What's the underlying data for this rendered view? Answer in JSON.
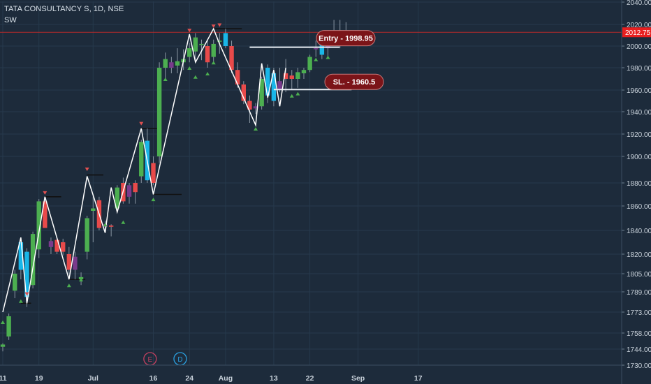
{
  "header": {
    "symbol_line": "TATA CONSULTANCY S, 1D, NSE",
    "indicator": "SW"
  },
  "colors": {
    "background": "#1d2b3b",
    "grid": "#26394c",
    "text": "#c8d1da",
    "up": "#4caf50",
    "down": "#e84a4a",
    "cyan": "#19b6e8",
    "purple": "#7a3a8c",
    "zigzag": "#ffffff",
    "price_line": "#b52a2a",
    "price_tag": "#e81f1f",
    "label_bg": "#7b1418"
  },
  "chart_data": {
    "type": "candlestick",
    "y_ticks": [
      2040.0,
      2020.0,
      2000.0,
      1980.0,
      1960.0,
      1940.0,
      1920.0,
      1900.0,
      1880.0,
      1860.0,
      1840.0,
      1820.0,
      1805.0,
      1789.0,
      1773.0,
      1758.0,
      1744.0,
      1730.0
    ],
    "y_tick_labels": [
      "2040.00",
      "2020.00",
      "2000.00",
      "1980.00",
      "1960.00",
      "1940.00",
      "1920.00",
      "1900.00",
      "1880.00",
      "1860.00",
      "1840.00",
      "1820.00",
      "1805.00",
      "1789.00",
      "1773.00",
      "1758.00",
      "1744.00",
      "1730.00"
    ],
    "ylim": [
      1730,
      2043
    ],
    "x_labels": [
      {
        "label": "11",
        "index": 0
      },
      {
        "label": "19",
        "index": 6
      },
      {
        "label": "Jul",
        "index": 15
      },
      {
        "label": "16",
        "index": 25
      },
      {
        "label": "24",
        "index": 31
      },
      {
        "label": "Aug",
        "index": 37
      },
      {
        "label": "13",
        "index": 45
      },
      {
        "label": "22",
        "index": 51
      },
      {
        "label": "Sep",
        "index": 59
      },
      {
        "label": "17",
        "index": 69
      }
    ],
    "candles": [
      {
        "o": 1746,
        "h": 1749,
        "l": 1742,
        "c": 1748,
        "col": "up"
      },
      {
        "o": 1755,
        "h": 1772,
        "l": 1752,
        "c": 1770,
        "col": "up"
      },
      {
        "o": 1790,
        "h": 1808,
        "l": 1784,
        "c": 1805,
        "col": "up"
      },
      {
        "o": 1808,
        "h": 1833,
        "l": 1800,
        "c": 1830,
        "col": "cyan"
      },
      {
        "o": 1785,
        "h": 1825,
        "l": 1777,
        "c": 1822,
        "col": "cyan"
      },
      {
        "o": 1795,
        "h": 1839,
        "l": 1792,
        "c": 1837,
        "col": "up"
      },
      {
        "o": 1824,
        "h": 1866,
        "l": 1817,
        "c": 1864,
        "col": "up"
      },
      {
        "o": 1864,
        "h": 1867,
        "l": 1842,
        "c": 1842,
        "col": "down"
      },
      {
        "o": 1826,
        "h": 1834,
        "l": 1820,
        "c": 1831,
        "col": "purple"
      },
      {
        "o": 1832,
        "h": 1834,
        "l": 1820,
        "c": 1822,
        "col": "down"
      },
      {
        "o": 1830,
        "h": 1833,
        "l": 1819,
        "c": 1822,
        "col": "down"
      },
      {
        "o": 1820,
        "h": 1826,
        "l": 1805,
        "c": 1808,
        "col": "down"
      },
      {
        "o": 1808,
        "h": 1822,
        "l": 1800,
        "c": 1818,
        "col": "purple"
      },
      {
        "o": 1800,
        "h": 1806,
        "l": 1795,
        "c": 1802,
        "col": "up"
      },
      {
        "o": 1822,
        "h": 1852,
        "l": 1816,
        "c": 1850,
        "col": "up"
      },
      {
        "o": 1856,
        "h": 1870,
        "l": 1830,
        "c": 1858,
        "col": "up"
      },
      {
        "o": 1865,
        "h": 1868,
        "l": 1840,
        "c": 1842,
        "col": "down"
      },
      {
        "o": 1845,
        "h": 1848,
        "l": 1838,
        "c": 1843,
        "col": "purple"
      },
      {
        "o": 1843,
        "h": 1845,
        "l": 1835,
        "c": 1844,
        "col": "down"
      },
      {
        "o": 1858,
        "h": 1878,
        "l": 1855,
        "c": 1876,
        "col": "up"
      },
      {
        "o": 1880,
        "h": 1884,
        "l": 1862,
        "c": 1864,
        "col": "down"
      },
      {
        "o": 1878,
        "h": 1880,
        "l": 1862,
        "c": 1868,
        "col": "purple"
      },
      {
        "o": 1872,
        "h": 1882,
        "l": 1862,
        "c": 1880,
        "col": "down"
      },
      {
        "o": 1885,
        "h": 1915,
        "l": 1880,
        "c": 1913,
        "col": "up"
      },
      {
        "o": 1914,
        "h": 1925,
        "l": 1880,
        "c": 1882,
        "col": "cyan"
      },
      {
        "o": 1895,
        "h": 1900,
        "l": 1878,
        "c": 1880,
        "col": "down"
      },
      {
        "o": 1900,
        "h": 1985,
        "l": 1895,
        "c": 1980,
        "col": "up"
      },
      {
        "o": 1980,
        "h": 1994,
        "l": 1970,
        "c": 1988,
        "col": "up"
      },
      {
        "o": 1985,
        "h": 1990,
        "l": 1975,
        "c": 1980,
        "col": "purple"
      },
      {
        "o": 1982,
        "h": 1998,
        "l": 1975,
        "c": 1986,
        "col": "up"
      },
      {
        "o": 1985,
        "h": 1997,
        "l": 1978,
        "c": 1988,
        "col": "up"
      },
      {
        "o": 1990,
        "h": 2003,
        "l": 1985,
        "c": 1998,
        "col": "up"
      },
      {
        "o": 1995,
        "h": 2012,
        "l": 1985,
        "c": 2008,
        "col": "up"
      },
      {
        "o": 2002,
        "h": 2006,
        "l": 1987,
        "c": 2002,
        "col": "up"
      },
      {
        "o": 2000,
        "h": 2005,
        "l": 1980,
        "c": 1985,
        "col": "down"
      },
      {
        "o": 1990,
        "h": 2006,
        "l": 1985,
        "c": 2002,
        "col": "up"
      },
      {
        "o": 2005,
        "h": 2012,
        "l": 1993,
        "c": 2004,
        "col": "up"
      },
      {
        "o": 2012,
        "h": 2016,
        "l": 1998,
        "c": 2000,
        "col": "cyan"
      },
      {
        "o": 2000,
        "h": 2005,
        "l": 1975,
        "c": 1978,
        "col": "down"
      },
      {
        "o": 1978,
        "h": 1985,
        "l": 1962,
        "c": 1965,
        "col": "down"
      },
      {
        "o": 1965,
        "h": 1968,
        "l": 1947,
        "c": 1950,
        "col": "down"
      },
      {
        "o": 1950,
        "h": 1955,
        "l": 1930,
        "c": 1942,
        "col": "down"
      },
      {
        "o": 1945,
        "h": 1948,
        "l": 1938,
        "c": 1943,
        "col": "purple"
      },
      {
        "o": 1945,
        "h": 1972,
        "l": 1942,
        "c": 1970,
        "col": "up"
      },
      {
        "o": 1955,
        "h": 1983,
        "l": 1948,
        "c": 1980,
        "col": "cyan"
      },
      {
        "o": 1950,
        "h": 1980,
        "l": 1945,
        "c": 1975,
        "col": "cyan"
      },
      {
        "o": 1960,
        "h": 1980,
        "l": 1958,
        "c": 1968,
        "col": "purple"
      },
      {
        "o": 1970,
        "h": 1988,
        "l": 1958,
        "c": 1975,
        "col": "down"
      },
      {
        "o": 1970,
        "h": 1978,
        "l": 1960,
        "c": 1973,
        "col": "down"
      },
      {
        "o": 1970,
        "h": 1980,
        "l": 1962,
        "c": 1976,
        "col": "up"
      },
      {
        "o": 1975,
        "h": 1980,
        "l": 1970,
        "c": 1978,
        "col": "up"
      },
      {
        "o": 1978,
        "h": 1992,
        "l": 1976,
        "c": 1990,
        "col": "up"
      },
      {
        "o": 1998,
        "h": 2005,
        "l": 1990,
        "c": 1998,
        "col": "purple"
      },
      {
        "o": 1992,
        "h": 2004,
        "l": 1988,
        "c": 2002,
        "col": "cyan"
      },
      {
        "o": 1998,
        "h": 2010,
        "l": 1990,
        "c": 2000,
        "col": "purple"
      },
      {
        "o": 2006,
        "h": 2024,
        "l": 2002,
        "c": 2010,
        "col": "cyan"
      },
      {
        "o": 2005,
        "h": 2024,
        "l": 1998,
        "c": 2010,
        "col": "purple"
      },
      {
        "o": 2012,
        "h": 2022,
        "l": 2005,
        "c": 2013,
        "col": "up"
      }
    ],
    "zigzag": [
      {
        "i": 0,
        "v": 1773
      },
      {
        "i": 3,
        "v": 1834
      },
      {
        "i": 4,
        "v": 1780
      },
      {
        "i": 7,
        "v": 1868
      },
      {
        "i": 11,
        "v": 1800
      },
      {
        "i": 14,
        "v": 1885
      },
      {
        "i": 17,
        "v": 1838
      },
      {
        "i": 18,
        "v": 1876
      },
      {
        "i": 19,
        "v": 1855
      },
      {
        "i": 23,
        "v": 1925
      },
      {
        "i": 25,
        "v": 1870
      },
      {
        "i": 31,
        "v": 2011
      },
      {
        "i": 32,
        "v": 1985
      },
      {
        "i": 35,
        "v": 2016
      },
      {
        "i": 36,
        "v": 2002
      },
      {
        "i": 42,
        "v": 1928
      },
      {
        "i": 43,
        "v": 1984
      },
      {
        "i": 44,
        "v": 1953
      },
      {
        "i": 45,
        "v": 1978
      },
      {
        "i": 46,
        "v": 1945
      },
      {
        "i": 47,
        "v": 1980
      }
    ],
    "markers_down": [
      {
        "i": 4,
        "v": 1787
      },
      {
        "i": 7,
        "v": 1871
      },
      {
        "i": 14,
        "v": 1890
      },
      {
        "i": 23,
        "v": 1929
      },
      {
        "i": 31,
        "v": 2014
      },
      {
        "i": 35,
        "v": 2018
      },
      {
        "i": 36,
        "v": 2019
      }
    ],
    "markers_up": [
      {
        "i": 0,
        "v": 1766
      },
      {
        "i": 3,
        "v": 1782
      },
      {
        "i": 11,
        "v": 1795
      },
      {
        "i": 13,
        "v": 1800
      },
      {
        "i": 17,
        "v": 1845
      },
      {
        "i": 20,
        "v": 1847
      },
      {
        "i": 25,
        "v": 1866
      },
      {
        "i": 27,
        "v": 1970
      },
      {
        "i": 31,
        "v": 1980
      },
      {
        "i": 32,
        "v": 1972
      },
      {
        "i": 34,
        "v": 1975
      },
      {
        "i": 35,
        "v": 1985
      },
      {
        "i": 42,
        "v": 1925
      },
      {
        "i": 43,
        "v": 1950
      },
      {
        "i": 48,
        "v": 1955
      },
      {
        "i": 49,
        "v": 1957
      },
      {
        "i": 52,
        "v": 1988
      },
      {
        "i": 54,
        "v": 1990
      }
    ],
    "level_segments": [
      {
        "i0": 7,
        "i1": 9,
        "v": 1868
      },
      {
        "i0": 14,
        "i1": 16,
        "v": 1886
      },
      {
        "i0": 23,
        "i1": 25,
        "v": 1925
      },
      {
        "i0": 25,
        "i1": 29,
        "v": 1870
      },
      {
        "i0": 35,
        "i1": 39,
        "v": 2016
      },
      {
        "i0": 3,
        "i1": 4,
        "v": 1780
      },
      {
        "i0": 11,
        "i1": 13,
        "v": 1800
      }
    ],
    "entry": {
      "label": "Entry - 1998.95",
      "value": 1998.95,
      "i0": 41,
      "i1": 55
    },
    "stop": {
      "label": "SL. - 1960.5",
      "value": 1960.5,
      "i0": 45,
      "i1": 57
    },
    "last_price": {
      "label": "2012.75",
      "value": 2012.75
    },
    "events": [
      {
        "label": "E",
        "i": 24
      },
      {
        "label": "D",
        "i": 29
      }
    ]
  }
}
